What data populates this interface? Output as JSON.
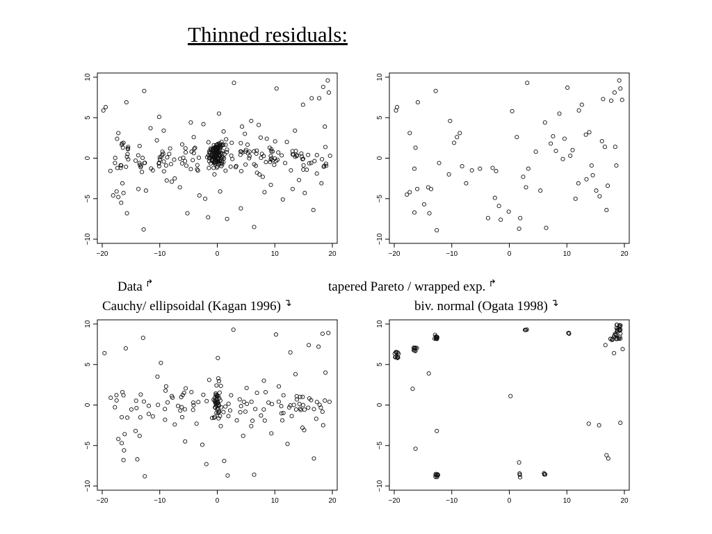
{
  "page": {
    "title": "Thinned residuals:",
    "captions": [
      {
        "text": "Data",
        "arrow": "↱"
      },
      {
        "text": "tapered Pareto / wrapped exp.",
        "arrow": "↱"
      },
      {
        "text": "Cauchy/ ellipsoidal (Kagan 1996)",
        "arrow": "↴"
      },
      {
        "text": "biv. normal (Ogata 1998)",
        "arrow": "↴"
      }
    ]
  },
  "chart_data": [
    {
      "type": "scatter",
      "panel": "top-left",
      "xlim": [
        -20,
        20
      ],
      "ylim": [
        -10,
        10
      ],
      "xticks": [
        -20,
        -10,
        0,
        10,
        20
      ],
      "yticks": [
        -10,
        -5,
        0,
        5,
        10
      ],
      "points": [
        [
          -19.8,
          5.9
        ],
        [
          -19.4,
          6.3
        ],
        [
          -15.8,
          6.9
        ],
        [
          -12.7,
          8.3
        ],
        [
          -17.2,
          3.1
        ],
        [
          -16.3,
          1.9
        ],
        [
          -16.4,
          1.3
        ],
        [
          -15.6,
          0.5
        ],
        [
          -16.8,
          -1.2
        ],
        [
          -16.5,
          -3.1
        ],
        [
          -16.3,
          -4.3
        ],
        [
          -17.5,
          -4.1
        ],
        [
          -17.2,
          -4.8
        ],
        [
          -16.7,
          -5.5
        ],
        [
          -15.7,
          -6.8
        ],
        [
          -18.1,
          -4.6
        ],
        [
          -14.2,
          -0.3
        ],
        [
          -13.5,
          1.5
        ],
        [
          -13.1,
          -1.7
        ],
        [
          -12.4,
          -4.0
        ],
        [
          -12.8,
          -8.8
        ],
        [
          -13.7,
          -3.8
        ],
        [
          -11.2,
          -1.5
        ],
        [
          -10.5,
          2.2
        ],
        [
          -10.1,
          5.1
        ],
        [
          -9.3,
          3.4
        ],
        [
          -8.2,
          1.2
        ],
        [
          -7.4,
          -2.5
        ],
        [
          -6.5,
          -3.6
        ],
        [
          -5.2,
          -6.8
        ],
        [
          -4.1,
          2.6
        ],
        [
          -3.5,
          -1.4
        ],
        [
          -2.4,
          4.2
        ],
        [
          -2.1,
          -5.0
        ],
        [
          -1.6,
          -7.3
        ],
        [
          -1.2,
          1.0
        ],
        [
          -0.5,
          -2.0
        ],
        [
          0.3,
          5.5
        ],
        [
          0.5,
          -4.1
        ],
        [
          1.1,
          3.3
        ],
        [
          1.7,
          -7.5
        ],
        [
          2.5,
          1.9
        ],
        [
          2.9,
          9.3
        ],
        [
          3.2,
          -1.1
        ],
        [
          4.1,
          -6.2
        ],
        [
          4.8,
          3.0
        ],
        [
          5.6,
          0.8
        ],
        [
          6.4,
          -8.5
        ],
        [
          7.2,
          4.1
        ],
        [
          7.9,
          -2.3
        ],
        [
          8.6,
          2.4
        ],
        [
          9.3,
          -3.3
        ],
        [
          10.3,
          8.6
        ],
        [
          10.6,
          0.7
        ],
        [
          11.4,
          -5.1
        ],
        [
          12.1,
          2.0
        ],
        [
          12.8,
          -1.5
        ],
        [
          13.5,
          3.4
        ],
        [
          14.2,
          -2.7
        ],
        [
          14.9,
          6.6
        ],
        [
          15.8,
          0.4
        ],
        [
          16.4,
          7.4
        ],
        [
          16.7,
          -6.4
        ],
        [
          17.3,
          -1.9
        ],
        [
          17.7,
          7.4
        ],
        [
          18.4,
          8.8
        ],
        [
          18.7,
          3.9
        ],
        [
          19.2,
          9.6
        ],
        [
          19.4,
          8.1
        ],
        [
          19.6,
          0.3
        ],
        [
          18.1,
          -3.1
        ],
        [
          15.2,
          -4.3
        ],
        [
          13.1,
          -3.8
        ],
        [
          -11.6,
          3.7
        ],
        [
          -8.9,
          -0.9
        ],
        [
          -6.1,
          1.7
        ],
        [
          -4.6,
          4.4
        ],
        [
          -3.1,
          -4.6
        ],
        [
          4.3,
          3.9
        ],
        [
          6.9,
          -1.8
        ],
        [
          9.1,
          1.3
        ],
        [
          11.8,
          -0.6
        ],
        [
          -7.9,
          -2.9
        ],
        [
          -9.6,
          0.4
        ],
        [
          5.9,
          4.6
        ],
        [
          8.2,
          -4.2
        ]
      ],
      "cluster": {
        "center": [
          0,
          0.5
        ],
        "count": 120,
        "spread": [
          1.4,
          1.6
        ]
      },
      "band_points": 140
    },
    {
      "type": "scatter",
      "panel": "top-right",
      "xlim": [
        -20,
        20
      ],
      "ylim": [
        -10,
        10
      ],
      "xticks": [
        -20,
        -10,
        0,
        10,
        20
      ],
      "yticks": [
        -10,
        -5,
        0,
        5,
        10
      ],
      "points": [
        [
          -19.7,
          5.9
        ],
        [
          -19.5,
          6.3
        ],
        [
          -15.9,
          6.9
        ],
        [
          -12.8,
          8.3
        ],
        [
          -17.3,
          3.1
        ],
        [
          -16.3,
          1.3
        ],
        [
          -16.5,
          -1.3
        ],
        [
          -16.0,
          -3.8
        ],
        [
          -17.3,
          -4.2
        ],
        [
          -17.8,
          -4.5
        ],
        [
          -16.5,
          -6.7
        ],
        [
          -14.1,
          -3.6
        ],
        [
          -13.6,
          -3.8
        ],
        [
          -13.9,
          -6.8
        ],
        [
          -12.6,
          -8.9
        ],
        [
          -12.2,
          -0.6
        ],
        [
          -10.5,
          -2.0
        ],
        [
          -9.6,
          1.9
        ],
        [
          -9.1,
          2.6
        ],
        [
          -10.3,
          4.6
        ],
        [
          -8.6,
          3.1
        ],
        [
          -7.5,
          -3.1
        ],
        [
          -6.5,
          -1.5
        ],
        [
          -5.1,
          -1.3
        ],
        [
          -2.3,
          -1.6
        ],
        [
          -2.5,
          -4.9
        ],
        [
          -1.8,
          -5.9
        ],
        [
          -1.5,
          -7.6
        ],
        [
          -0.1,
          -6.6
        ],
        [
          -3.7,
          -7.4
        ],
        [
          0.5,
          5.8
        ],
        [
          1.3,
          2.6
        ],
        [
          1.9,
          -7.4
        ],
        [
          1.7,
          -8.7
        ],
        [
          2.4,
          -2.3
        ],
        [
          2.9,
          -3.6
        ],
        [
          3.3,
          -1.3
        ],
        [
          3.1,
          9.3
        ],
        [
          4.6,
          0.8
        ],
        [
          5.4,
          -4.0
        ],
        [
          6.2,
          4.4
        ],
        [
          6.4,
          -8.6
        ],
        [
          7.2,
          1.8
        ],
        [
          8.1,
          0.9
        ],
        [
          8.7,
          5.5
        ],
        [
          9.3,
          -0.1
        ],
        [
          9.6,
          2.4
        ],
        [
          10.1,
          8.7
        ],
        [
          10.6,
          0.3
        ],
        [
          11.5,
          -5.0
        ],
        [
          12.1,
          5.9
        ],
        [
          12.6,
          6.6
        ],
        [
          13.3,
          2.9
        ],
        [
          13.4,
          -2.6
        ],
        [
          13.9,
          3.2
        ],
        [
          14.3,
          -0.9
        ],
        [
          15.1,
          -4.0
        ],
        [
          15.7,
          -4.7
        ],
        [
          16.3,
          7.3
        ],
        [
          16.6,
          1.4
        ],
        [
          16.9,
          -6.4
        ],
        [
          17.1,
          -3.4
        ],
        [
          17.7,
          7.1
        ],
        [
          18.3,
          8.1
        ],
        [
          18.4,
          1.4
        ],
        [
          19.1,
          9.6
        ],
        [
          19.3,
          8.6
        ],
        [
          19.6,
          7.2
        ],
        [
          18.6,
          -0.9
        ],
        [
          14.5,
          -2.1
        ],
        [
          12.0,
          -3.1
        ],
        [
          -14.8,
          -5.7
        ],
        [
          -8.2,
          -1.0
        ],
        [
          -2.9,
          -1.2
        ],
        [
          7.6,
          2.7
        ],
        [
          11.0,
          1.0
        ],
        [
          16.1,
          2.1
        ]
      ],
      "cluster": null,
      "band_points": 0
    },
    {
      "type": "scatter",
      "panel": "bottom-left",
      "xlim": [
        -20,
        20
      ],
      "ylim": [
        -10,
        10
      ],
      "xticks": [
        -20,
        -10,
        0,
        10,
        20
      ],
      "yticks": [
        -10,
        -5,
        0,
        5,
        10
      ],
      "points": [
        [
          -19.6,
          6.4
        ],
        [
          -15.9,
          7.0
        ],
        [
          -12.9,
          8.3
        ],
        [
          -16.5,
          1.6
        ],
        [
          -16.3,
          1.2
        ],
        [
          -16.6,
          -1.5
        ],
        [
          -16.1,
          -3.6
        ],
        [
          -17.2,
          -4.2
        ],
        [
          -16.6,
          -4.7
        ],
        [
          -16.2,
          -5.6
        ],
        [
          -16.3,
          -6.8
        ],
        [
          -14.2,
          -3.2
        ],
        [
          -13.5,
          -3.8
        ],
        [
          -13.9,
          -6.7
        ],
        [
          -12.6,
          -8.8
        ],
        [
          -13.3,
          1.3
        ],
        [
          -11.2,
          -1.4
        ],
        [
          -10.4,
          3.5
        ],
        [
          -9.8,
          5.2
        ],
        [
          -8.9,
          2.3
        ],
        [
          -7.4,
          -2.4
        ],
        [
          -6.1,
          -1.5
        ],
        [
          -5.6,
          -4.5
        ],
        [
          -4.5,
          1.6
        ],
        [
          -3.6,
          -2.3
        ],
        [
          -2.6,
          -4.9
        ],
        [
          -1.9,
          -7.3
        ],
        [
          -1.4,
          3.1
        ],
        [
          -0.9,
          -1.6
        ],
        [
          0.1,
          5.8
        ],
        [
          0.6,
          -2.6
        ],
        [
          1.2,
          -6.9
        ],
        [
          1.8,
          -8.7
        ],
        [
          2.4,
          1.2
        ],
        [
          2.8,
          9.3
        ],
        [
          3.4,
          -1.9
        ],
        [
          4.5,
          -3.8
        ],
        [
          5.1,
          2.1
        ],
        [
          5.9,
          -2.6
        ],
        [
          6.4,
          -8.6
        ],
        [
          6.9,
          1.5
        ],
        [
          7.6,
          -1.3
        ],
        [
          8.1,
          3.0
        ],
        [
          9.4,
          -3.5
        ],
        [
          10.2,
          8.7
        ],
        [
          10.7,
          2.3
        ],
        [
          11.3,
          -1.9
        ],
        [
          12.2,
          -4.8
        ],
        [
          12.7,
          6.5
        ],
        [
          13.6,
          3.8
        ],
        [
          14.4,
          1.0
        ],
        [
          15.1,
          -3.1
        ],
        [
          15.9,
          7.4
        ],
        [
          16.3,
          0.6
        ],
        [
          16.8,
          -6.6
        ],
        [
          17.2,
          -1.7
        ],
        [
          17.6,
          7.2
        ],
        [
          18.3,
          8.8
        ],
        [
          18.8,
          4.0
        ],
        [
          19.3,
          8.9
        ],
        [
          19.5,
          0.4
        ],
        [
          18.4,
          -2.5
        ],
        [
          14.8,
          -2.8
        ],
        [
          12.5,
          -0.3
        ],
        [
          -11.9,
          -1.1
        ],
        [
          -9.1,
          -0.5
        ],
        [
          -7.9,
          1.1
        ],
        [
          -4.2,
          -0.6
        ],
        [
          3.9,
          0.7
        ],
        [
          6.6,
          -0.5
        ],
        [
          8.9,
          0.3
        ],
        [
          11.5,
          1.2
        ]
      ],
      "cluster": {
        "center": [
          0,
          0.2
        ],
        "count": 45,
        "spread": [
          0.8,
          2.8
        ]
      },
      "band_points": 70
    },
    {
      "type": "scatter",
      "panel": "bottom-right",
      "xlim": [
        -20,
        20
      ],
      "ylim": [
        -10,
        10
      ],
      "xticks": [
        -20,
        -10,
        0,
        10,
        20
      ],
      "yticks": [
        -10,
        -5,
        0,
        5,
        10
      ],
      "points": [
        [
          -14.0,
          3.9
        ],
        [
          -16.8,
          2.0
        ],
        [
          -16.3,
          -5.4
        ],
        [
          -12.6,
          -3.2
        ],
        [
          0.2,
          1.1
        ],
        [
          13.8,
          -2.3
        ],
        [
          15.6,
          -2.5
        ],
        [
          19.3,
          -2.2
        ],
        [
          16.9,
          -6.2
        ],
        [
          17.2,
          -6.6
        ],
        [
          1.7,
          -7.1
        ],
        [
          19.7,
          6.9
        ],
        [
          18.2,
          6.4
        ],
        [
          16.7,
          7.4
        ]
      ],
      "clumps": [
        {
          "center": [
            -19.6,
            6.1
          ],
          "count": 12,
          "spread": [
            0.35,
            0.45
          ]
        },
        {
          "center": [
            -16.3,
            6.9
          ],
          "count": 9,
          "spread": [
            0.35,
            0.3
          ]
        },
        {
          "center": [
            -12.8,
            8.4
          ],
          "count": 14,
          "spread": [
            0.3,
            0.3
          ]
        },
        {
          "center": [
            -12.6,
            -8.7
          ],
          "count": 8,
          "spread": [
            0.3,
            0.25
          ]
        },
        {
          "center": [
            2.9,
            9.2
          ],
          "count": 4,
          "spread": [
            0.2,
            0.15
          ]
        },
        {
          "center": [
            1.8,
            -8.7
          ],
          "count": 4,
          "spread": [
            0.15,
            0.25
          ]
        },
        {
          "center": [
            6.2,
            -8.5
          ],
          "count": 4,
          "spread": [
            0.25,
            0.1
          ]
        },
        {
          "center": [
            10.3,
            8.8
          ],
          "count": 3,
          "spread": [
            0.1,
            0.15
          ]
        },
        {
          "center": [
            19.0,
            9.5
          ],
          "count": 14,
          "spread": [
            0.4,
            0.4
          ]
        },
        {
          "center": [
            18.8,
            8.5
          ],
          "count": 12,
          "spread": [
            0.6,
            0.4
          ]
        },
        {
          "center": [
            17.8,
            7.9
          ],
          "count": 5,
          "spread": [
            0.3,
            0.3
          ]
        }
      ],
      "cluster": null,
      "band_points": 0
    }
  ]
}
